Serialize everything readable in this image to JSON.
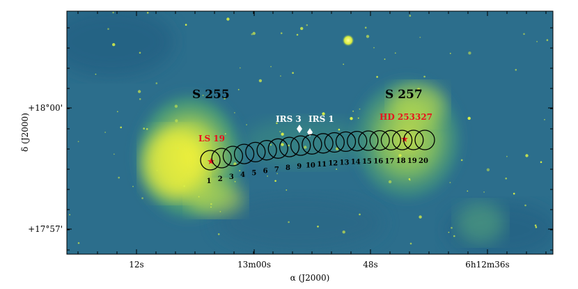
{
  "axes": {
    "xlabel": "α (J2000)",
    "ylabel": "δ (J2000)",
    "x_ticks": [
      "12s",
      "13m00s",
      "48s",
      "6h12m36s"
    ],
    "y_ticks": [
      "+18°00'",
      "+17°57'"
    ]
  },
  "regions": [
    {
      "name": "S 255"
    },
    {
      "name": "S 257"
    }
  ],
  "sources": [
    {
      "name": "LS 19",
      "color": "#e8121d"
    },
    {
      "name": "HD 253327",
      "color": "#e8121d"
    },
    {
      "name": "IRS 3",
      "color": "#ffffff"
    },
    {
      "name": "IRS 1",
      "color": "#ffffff"
    }
  ],
  "apertures": [
    "1",
    "2",
    "3",
    "4",
    "5",
    "6",
    "7",
    "8",
    "9",
    "10",
    "11",
    "12",
    "13",
    "14",
    "15",
    "16",
    "17",
    "18",
    "19",
    "20"
  ],
  "colors": {
    "background": "#2c6e8c",
    "nebula": "#b6dc4a",
    "nebula_core": "#e9ef3a",
    "star_red": "#e8121d",
    "star_white": "#ffffff"
  }
}
